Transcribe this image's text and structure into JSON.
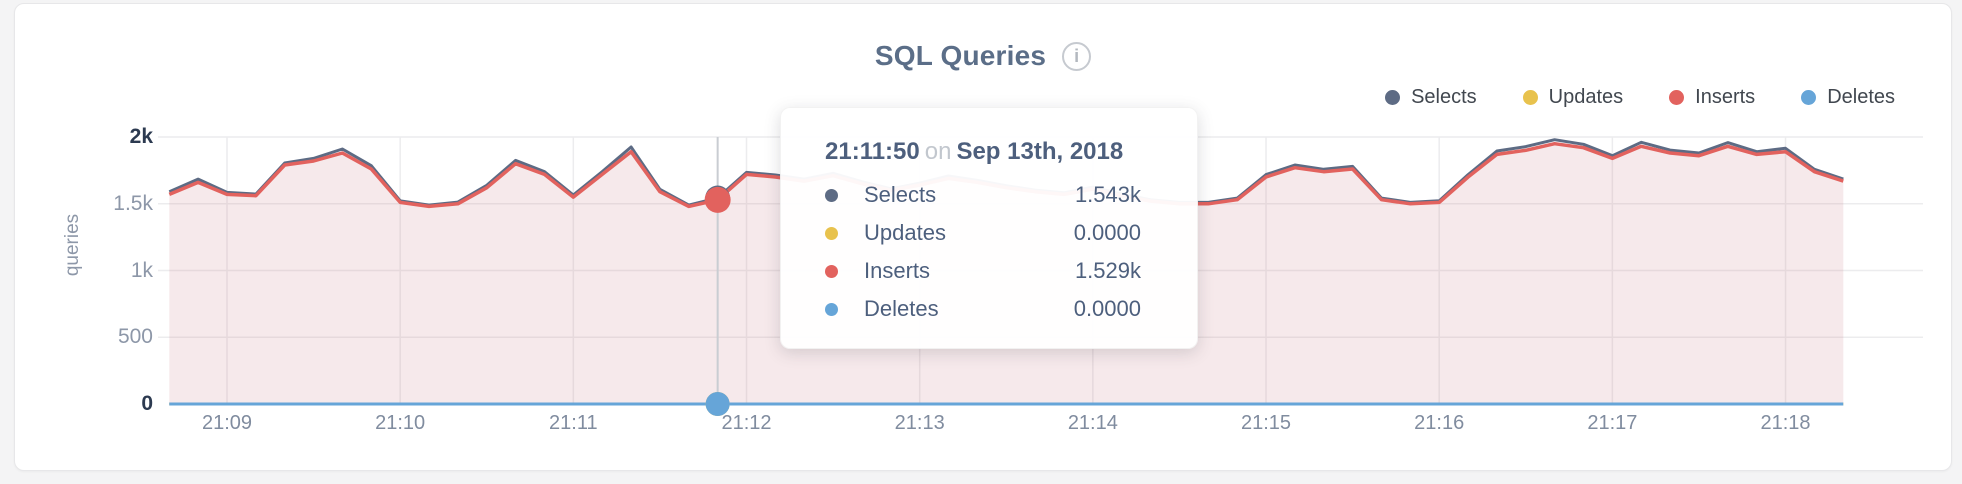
{
  "page": {
    "background": "#f4f4f5",
    "card_background": "#ffffff"
  },
  "header": {
    "title": "SQL Queries",
    "info_glyph": "i"
  },
  "axes": {
    "y_axis_title": "queries"
  },
  "tooltip": {
    "time": "21:11:50",
    "on_word": "on",
    "date": "Sep 13th, 2018",
    "rows": [
      {
        "label": "Selects",
        "value": "1.543k",
        "color": "#5d6b84"
      },
      {
        "label": "Updates",
        "value": "0.0000",
        "color": "#e8c24d"
      },
      {
        "label": "Inserts",
        "value": "1.529k",
        "color": "#e2625e"
      },
      {
        "label": "Deletes",
        "value": "0.0000",
        "color": "#66a5d8"
      }
    ]
  },
  "chart_data": {
    "type": "area",
    "title": "SQL Queries",
    "ylabel": "queries",
    "ylim": [
      0,
      2000
    ],
    "grid": true,
    "legend_position": "top-right",
    "x_start": "21:08:40",
    "x_end": "21:18:20",
    "x_interval_seconds": 10,
    "x_ticks": [
      "21:09",
      "21:10",
      "21:11",
      "21:12",
      "21:13",
      "21:14",
      "21:15",
      "21:16",
      "21:17",
      "21:18"
    ],
    "y_ticks": [
      {
        "label": "0",
        "value": 0,
        "strong": true
      },
      {
        "label": "500",
        "value": 500,
        "strong": false
      },
      {
        "label": "1k",
        "value": 1000,
        "strong": false
      },
      {
        "label": "1.5k",
        "value": 1500,
        "strong": false
      },
      {
        "label": "2k",
        "value": 2000,
        "strong": true
      }
    ],
    "series": [
      {
        "name": "Selects",
        "color": "#5d6b84",
        "values": [
          1590,
          1685,
          1585,
          1572,
          1805,
          1840,
          1910,
          1785,
          1522,
          1490,
          1512,
          1638,
          1825,
          1740,
          1565,
          1740,
          1925,
          1608,
          1490,
          1543,
          1735,
          1715,
          1685,
          1728,
          1665,
          1612,
          1655,
          1708,
          1675,
          1635,
          1602,
          1582,
          1625,
          1572,
          1530,
          1510,
          1510,
          1542,
          1718,
          1790,
          1758,
          1780,
          1542,
          1510,
          1522,
          1718,
          1895,
          1928,
          1980,
          1945,
          1860,
          1960,
          1902,
          1880,
          1958,
          1890,
          1915,
          1758,
          1685
        ]
      },
      {
        "name": "Updates",
        "color": "#e8c24d",
        "constant_value": 0
      },
      {
        "name": "Inserts",
        "color": "#e2625e",
        "area_fill": "rgba(196,120,130,0.16)",
        "values": [
          1570,
          1660,
          1570,
          1560,
          1790,
          1820,
          1880,
          1760,
          1510,
          1480,
          1500,
          1620,
          1800,
          1720,
          1550,
          1720,
          1890,
          1590,
          1480,
          1529,
          1720,
          1700,
          1670,
          1710,
          1650,
          1600,
          1640,
          1690,
          1660,
          1620,
          1590,
          1570,
          1610,
          1560,
          1520,
          1500,
          1500,
          1530,
          1700,
          1770,
          1740,
          1760,
          1530,
          1500,
          1510,
          1700,
          1870,
          1900,
          1950,
          1920,
          1840,
          1930,
          1880,
          1860,
          1930,
          1870,
          1890,
          1740,
          1670
        ]
      },
      {
        "name": "Deletes",
        "color": "#66a5d8",
        "constant_value": 0
      }
    ],
    "hover_point": {
      "index": 19,
      "time": "21:11:50",
      "date": "Sep 13th, 2018",
      "values": {
        "Selects": "1.543k",
        "Updates": "0.0000",
        "Inserts": "1.529k",
        "Deletes": "0.0000"
      }
    }
  }
}
